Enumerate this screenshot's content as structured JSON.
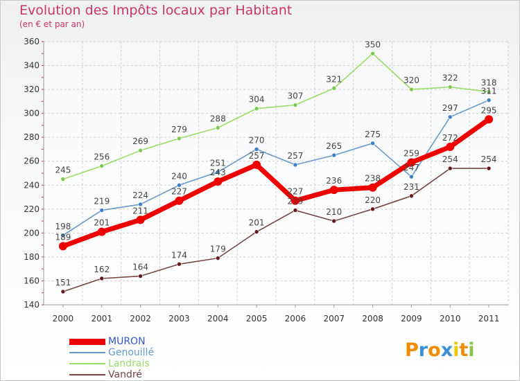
{
  "title": "Evolution des Impôts locaux par Habitant",
  "subtitle": "(en € et par an)",
  "logo": {
    "letters": [
      "P",
      "r",
      "o",
      "x",
      "i",
      "t",
      "i"
    ],
    "colors": [
      "#f08c00",
      "#3a8fd8",
      "#f08c00",
      "#3a8fd8",
      "#f0c800",
      "#f08c00",
      "#8bc34a"
    ]
  },
  "chart_data": {
    "type": "line",
    "x": [
      "2000",
      "2001",
      "2002",
      "2003",
      "2004",
      "2005",
      "2006",
      "2007",
      "2008",
      "2009",
      "2010",
      "2011"
    ],
    "ylim": [
      140,
      360
    ],
    "yticks": [
      140,
      160,
      180,
      200,
      220,
      240,
      260,
      280,
      300,
      320,
      340,
      360
    ],
    "grid": true,
    "legend": "bottom-left",
    "series": [
      {
        "name": "Landrais",
        "color": "#99dd66",
        "point_color": "#7ec850",
        "values": [
          245,
          256,
          269,
          279,
          288,
          304,
          307,
          321,
          350,
          320,
          322,
          318
        ]
      },
      {
        "name": "Genouillé",
        "color": "#6699cc",
        "point_color": "#3a7fc8",
        "values": [
          198,
          219,
          224,
          240,
          251,
          270,
          257,
          265,
          275,
          247,
          297,
          311
        ]
      },
      {
        "name": "Vandré",
        "color": "#774444",
        "point_color": "#661a1a",
        "values": [
          151,
          162,
          164,
          174,
          179,
          201,
          219,
          210,
          220,
          231,
          254,
          254
        ]
      },
      {
        "name": "MURON",
        "color": "#ee0000",
        "point_color": "#ee0000",
        "values": [
          189,
          201,
          211,
          227,
          243,
          257,
          227,
          236,
          238,
          259,
          272,
          295
        ],
        "bold": true
      }
    ],
    "legend_order": [
      "MURON",
      "Genouillé",
      "Landrais",
      "Vandré"
    ]
  }
}
